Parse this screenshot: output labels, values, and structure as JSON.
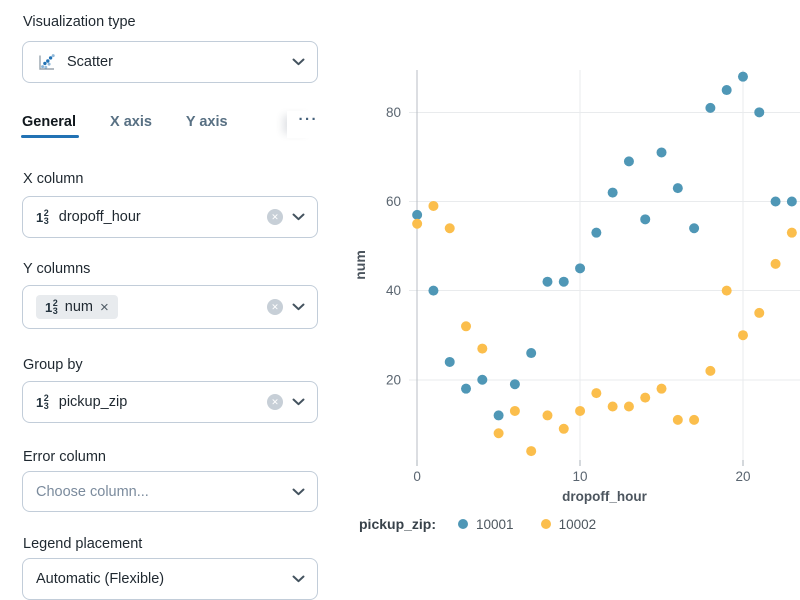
{
  "panel": {
    "viz_type": {
      "label": "Visualization type",
      "value": "Scatter"
    },
    "tabs": {
      "items": [
        {
          "label": "General",
          "active": true
        },
        {
          "label": "X axis",
          "active": false
        },
        {
          "label": "Y axis",
          "active": false
        }
      ],
      "more": "···"
    },
    "x_column": {
      "label": "X column",
      "value": "dropoff_hour"
    },
    "y_columns": {
      "label": "Y columns",
      "pill_value": "num",
      "pill_remove": "×"
    },
    "group_by": {
      "label": "Group by",
      "value": "pickup_zip"
    },
    "error_column": {
      "label": "Error column",
      "placeholder": "Choose column..."
    },
    "legend_placement": {
      "label": "Legend placement",
      "value": "Automatic (Flexible)"
    },
    "number_type_glyph": {
      "main": "1",
      "sup": "2",
      "sub": "3"
    },
    "accent_color": "#2272b4"
  },
  "chart_data": {
    "type": "scatter",
    "xlabel": "dropoff_hour",
    "ylabel": "num",
    "legend_title": "pickup_zip:",
    "legend_position": "bottom",
    "grid": true,
    "xlim": [
      -0.5,
      23.5
    ],
    "ylim": [
      2,
      89.5
    ],
    "x_ticks": [
      0,
      10,
      20
    ],
    "y_ticks": [
      20,
      40,
      60,
      80
    ],
    "x": [
      0,
      1,
      2,
      3,
      4,
      5,
      6,
      7,
      8,
      9,
      10,
      11,
      12,
      13,
      14,
      15,
      16,
      17,
      18,
      19,
      20,
      21,
      22,
      23
    ],
    "series": [
      {
        "name": "10001",
        "color": "#4f97b6",
        "y": [
          57,
          40,
          24,
          18,
          20,
          12,
          19,
          26,
          42,
          42,
          45,
          53,
          62,
          69,
          56,
          71,
          63,
          54,
          81,
          85,
          88,
          80,
          60,
          60
        ]
      },
      {
        "name": "10002",
        "color": "#fbbe4c",
        "y": [
          55,
          59,
          54,
          32,
          27,
          8,
          13,
          4,
          12,
          9,
          13,
          17,
          14,
          14,
          16,
          18,
          11,
          11,
          22,
          40,
          30,
          35,
          46,
          53
        ]
      }
    ]
  }
}
